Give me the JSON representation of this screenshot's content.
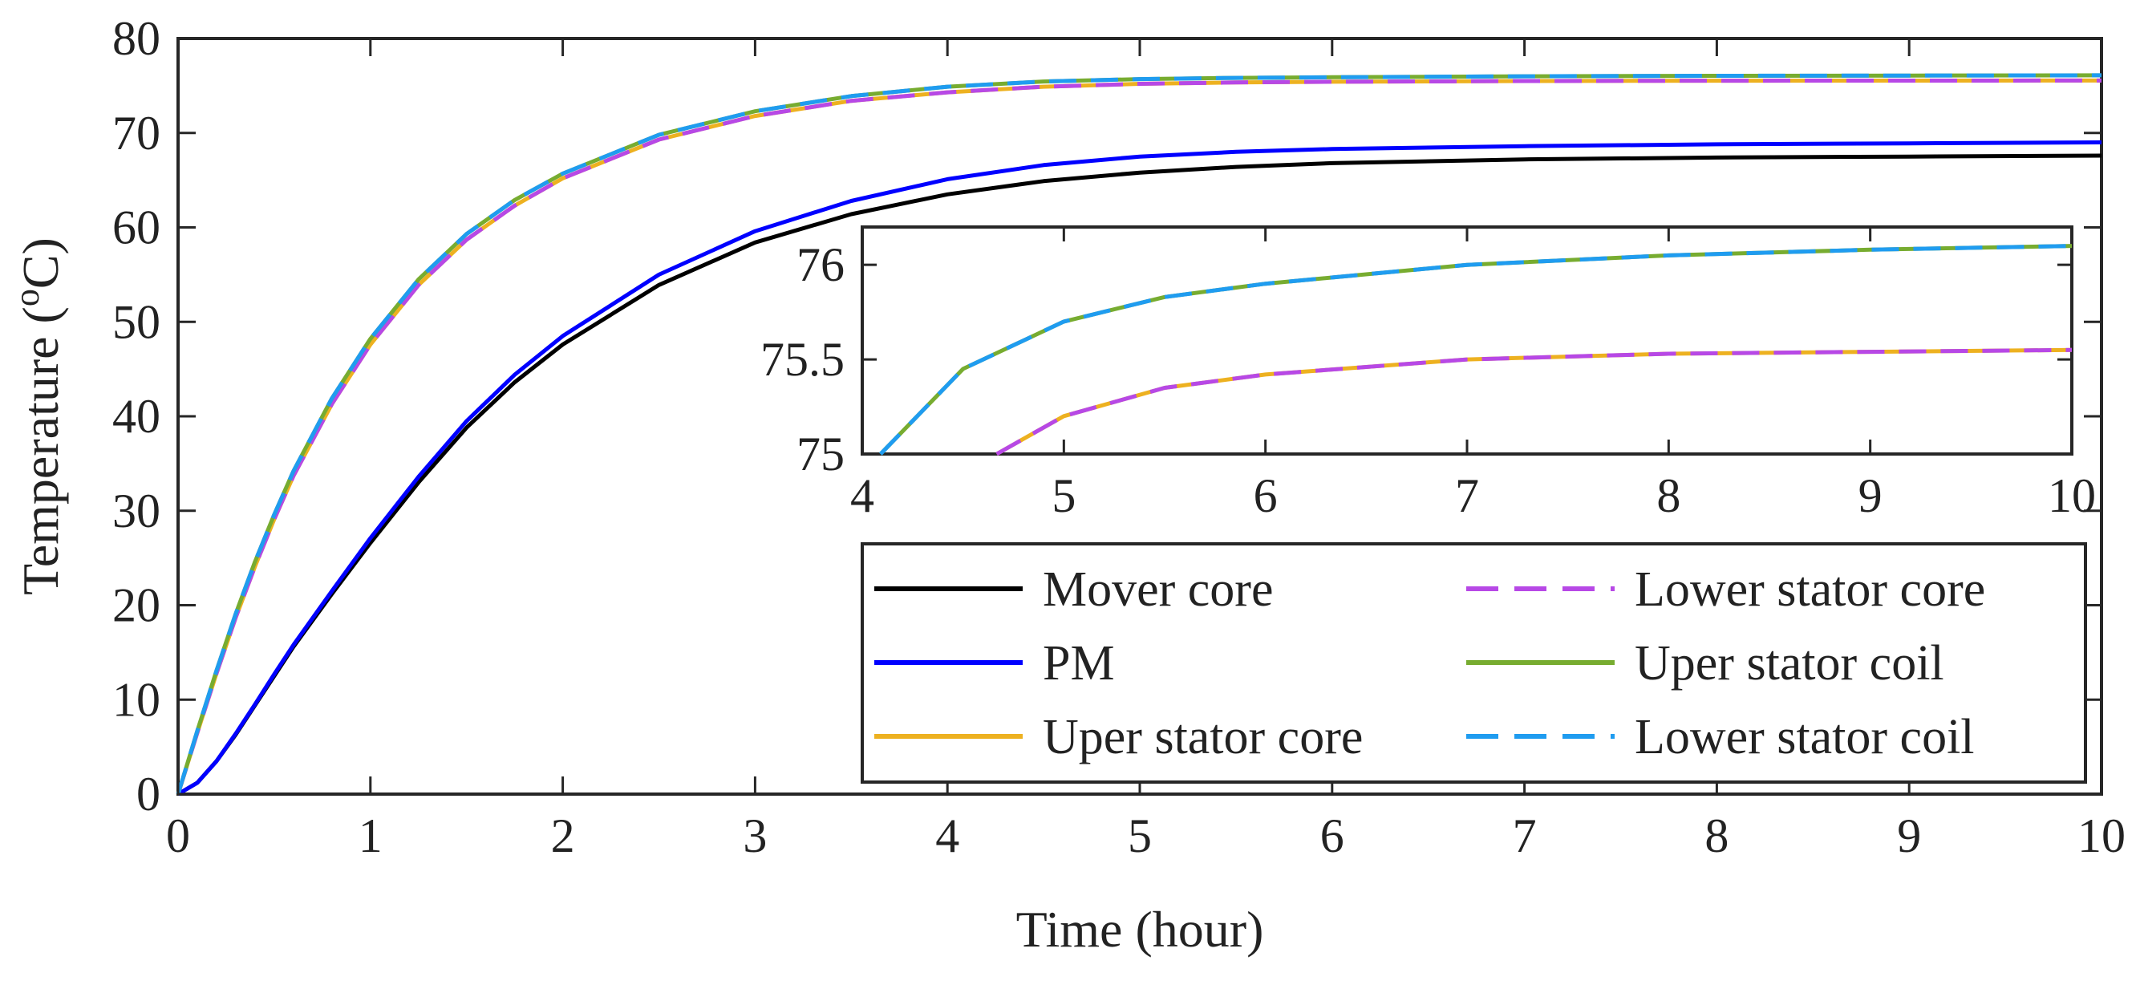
{
  "chart_data": {
    "type": "line",
    "xlabel": "Time (hour)",
    "ylabel_main": "Temperature (",
    "ylabel_sup": "o",
    "ylabel_end": "C)",
    "xlim": [
      0,
      10
    ],
    "ylim": [
      0,
      80
    ],
    "xticks": [
      "0",
      "1",
      "2",
      "3",
      "4",
      "5",
      "6",
      "7",
      "8",
      "9",
      "10"
    ],
    "yticks": [
      "0",
      "10",
      "20",
      "30",
      "40",
      "50",
      "60",
      "70",
      "80"
    ],
    "grid": false,
    "legend_position": "lower-right",
    "x": [
      0,
      0.1,
      0.2,
      0.3,
      0.4,
      0.5,
      0.6,
      0.8,
      1.0,
      1.25,
      1.5,
      1.75,
      2.0,
      2.5,
      3.0,
      3.5,
      4.0,
      4.5,
      5.0,
      5.5,
      6.0,
      7.0,
      8.0,
      9.0,
      10.0
    ],
    "series": [
      {
        "name": "Mover core",
        "color": "#000000",
        "dash": "solid",
        "values": [
          0,
          1.2,
          3.5,
          6.3,
          9.4,
          12.5,
          15.6,
          21.2,
          26.6,
          33.0,
          38.8,
          43.6,
          47.6,
          53.9,
          58.4,
          61.4,
          63.5,
          64.9,
          65.8,
          66.4,
          66.8,
          67.2,
          67.4,
          67.5,
          67.6
        ]
      },
      {
        "name": "PM",
        "color": "#0000ff",
        "dash": "solid",
        "values": [
          0,
          1.2,
          3.5,
          6.4,
          9.5,
          12.7,
          15.8,
          21.5,
          27.1,
          33.6,
          39.5,
          44.4,
          48.5,
          55.0,
          59.6,
          62.8,
          65.1,
          66.6,
          67.5,
          68.0,
          68.3,
          68.6,
          68.8,
          68.9,
          69.0
        ]
      },
      {
        "name": "Uper stator core",
        "color": "#edb120",
        "dash": "solid",
        "values": [
          0,
          6.5,
          12.8,
          18.7,
          24.1,
          29.1,
          33.7,
          41.3,
          47.6,
          53.9,
          58.7,
          62.3,
          65.2,
          69.3,
          71.8,
          73.4,
          74.3,
          74.9,
          75.2,
          75.35,
          75.42,
          75.5,
          75.53,
          75.54,
          75.55
        ]
      },
      {
        "name": "Lower stator core",
        "color": "#b748e6",
        "dash": "dashed",
        "values": [
          0,
          6.5,
          12.8,
          18.7,
          24.1,
          29.1,
          33.7,
          41.3,
          47.6,
          53.9,
          58.7,
          62.3,
          65.2,
          69.3,
          71.8,
          73.4,
          74.3,
          74.9,
          75.2,
          75.35,
          75.42,
          75.5,
          75.53,
          75.54,
          75.55
        ]
      },
      {
        "name": "Uper stator coil",
        "color": "#77ac30",
        "dash": "solid",
        "values": [
          0,
          6.7,
          13.1,
          19.1,
          24.6,
          29.6,
          34.2,
          41.9,
          48.2,
          54.5,
          59.3,
          62.9,
          65.7,
          69.8,
          72.3,
          73.9,
          74.9,
          75.45,
          75.7,
          75.83,
          75.9,
          76.0,
          76.05,
          76.08,
          76.1
        ]
      },
      {
        "name": "Lower stator coil",
        "color": "#1f9cf0",
        "dash": "dashed",
        "values": [
          0,
          6.7,
          13.1,
          19.1,
          24.6,
          29.6,
          34.2,
          41.9,
          48.2,
          54.5,
          59.3,
          62.9,
          65.7,
          69.8,
          72.3,
          73.9,
          74.9,
          75.45,
          75.7,
          75.83,
          75.9,
          76.0,
          76.05,
          76.08,
          76.1
        ]
      }
    ],
    "inset": {
      "xlim": [
        4,
        10
      ],
      "ylim": [
        75,
        76.2
      ],
      "xticks": [
        "4",
        "5",
        "6",
        "7",
        "8",
        "9",
        "10"
      ],
      "yticks": [
        "75",
        "75.5",
        "76"
      ]
    }
  }
}
